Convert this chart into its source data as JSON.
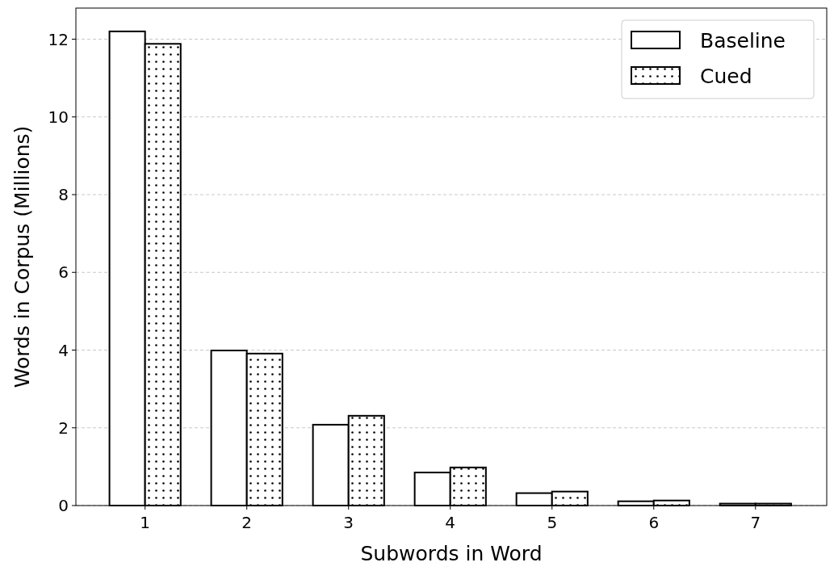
{
  "chart_data": {
    "type": "bar",
    "xlabel": "Subwords in Word",
    "ylabel": "Words in Corpus (Millions)",
    "categories": [
      "1",
      "2",
      "3",
      "4",
      "5",
      "6",
      "7"
    ],
    "series": [
      {
        "name": "Baseline",
        "color": "#ffffff",
        "values": [
          12.2,
          3.99,
          2.08,
          0.85,
          0.32,
          0.11,
          0.05
        ]
      },
      {
        "name": "Cued",
        "color": "#ffffff",
        "values": [
          11.88,
          3.91,
          2.31,
          0.98,
          0.36,
          0.13,
          0.05
        ]
      }
    ],
    "ylim": [
      0,
      12.8
    ],
    "yticks": [
      0,
      2,
      4,
      6,
      8,
      10,
      12
    ],
    "grid": "y",
    "legend": "top right"
  }
}
